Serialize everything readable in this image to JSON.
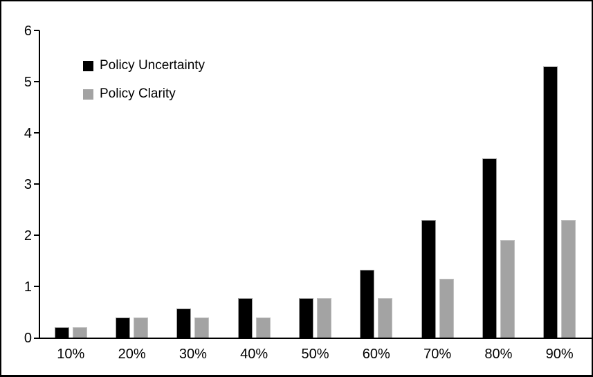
{
  "chart_data": {
    "type": "bar",
    "title": "",
    "xlabel": "",
    "ylabel": "",
    "categories": [
      "10%",
      "20%",
      "30%",
      "40%",
      "50%",
      "60%",
      "70%",
      "80%",
      "90%"
    ],
    "series": [
      {
        "name": "Policy Uncertainty",
        "color": "#000000",
        "values": [
          0.2,
          0.39,
          0.57,
          0.77,
          0.77,
          1.33,
          2.3,
          3.5,
          5.3
        ]
      },
      {
        "name": "Policy Clarity",
        "color": "#a3a3a3",
        "values": [
          0.2,
          0.39,
          0.39,
          0.39,
          0.77,
          0.77,
          1.15,
          1.9,
          2.3
        ]
      }
    ],
    "ylim": [
      0,
      6
    ],
    "yticks": [
      0,
      1,
      2,
      3,
      4,
      5,
      6
    ],
    "grid": false,
    "legend_position": "top-left-inside",
    "frame_color": "#000000",
    "background_color": "#ffffff"
  }
}
